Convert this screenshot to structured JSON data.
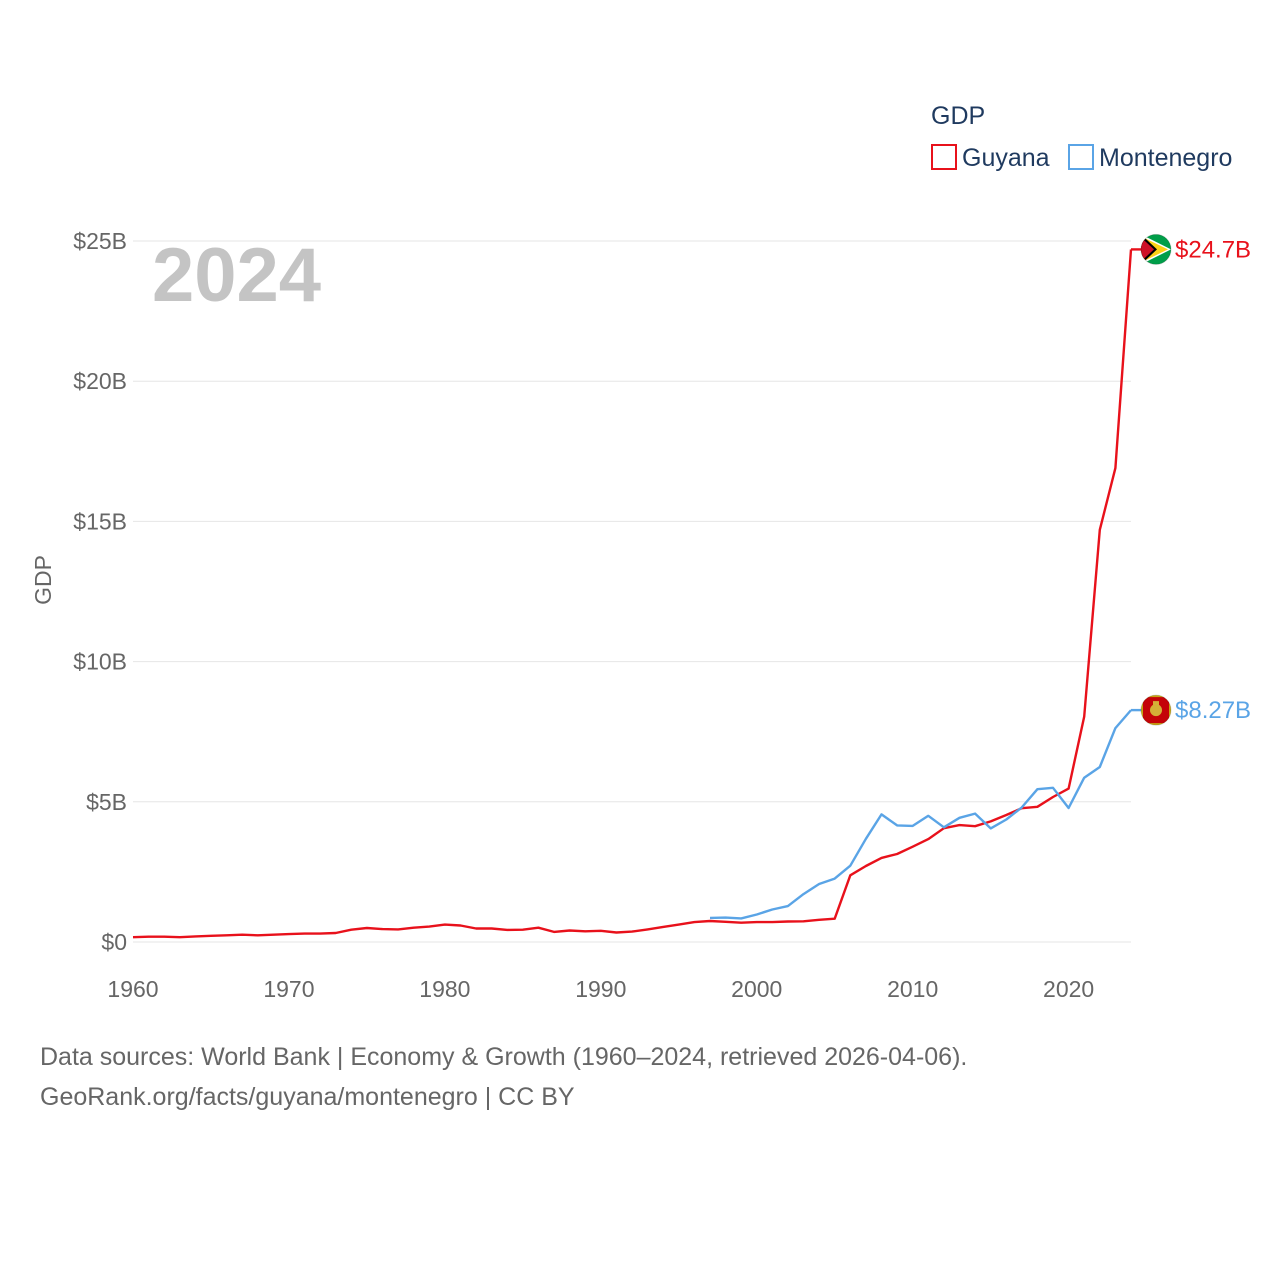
{
  "chart_data": {
    "type": "line",
    "title": "",
    "year_overlay": "2024",
    "xlabel": "",
    "ylabel": "GDP",
    "legend_title": "GDP",
    "legend_position": "top-right",
    "xlim": [
      1960,
      2024
    ],
    "ylim": [
      0,
      25
    ],
    "x_ticks": [
      1960,
      1970,
      1980,
      1990,
      2000,
      2010,
      2020
    ],
    "y_ticks": [
      {
        "value": 0,
        "label": "$0"
      },
      {
        "value": 5,
        "label": "$5B"
      },
      {
        "value": 10,
        "label": "$10B"
      },
      {
        "value": 15,
        "label": "$15B"
      },
      {
        "value": 20,
        "label": "$20B"
      },
      {
        "value": 25,
        "label": "$25B"
      }
    ],
    "grid": true,
    "units": "billions USD",
    "series": [
      {
        "name": "Guyana",
        "color": "#e8111b",
        "end_label": "$24.7B",
        "end_icon": "guyana-flag-icon",
        "x": [
          1960,
          1961,
          1962,
          1963,
          1964,
          1965,
          1966,
          1967,
          1968,
          1969,
          1970,
          1971,
          1972,
          1973,
          1974,
          1975,
          1976,
          1977,
          1978,
          1979,
          1980,
          1981,
          1982,
          1983,
          1984,
          1985,
          1986,
          1987,
          1988,
          1989,
          1990,
          1991,
          1992,
          1993,
          1994,
          1995,
          1996,
          1997,
          1998,
          1999,
          2000,
          2001,
          2002,
          2003,
          2004,
          2005,
          2006,
          2007,
          2008,
          2009,
          2010,
          2011,
          2012,
          2013,
          2014,
          2015,
          2016,
          2017,
          2018,
          2019,
          2020,
          2021,
          2022,
          2023,
          2024
        ],
        "values": [
          0.17,
          0.19,
          0.19,
          0.17,
          0.2,
          0.22,
          0.24,
          0.26,
          0.24,
          0.26,
          0.28,
          0.3,
          0.3,
          0.32,
          0.44,
          0.5,
          0.46,
          0.45,
          0.51,
          0.55,
          0.62,
          0.59,
          0.48,
          0.48,
          0.43,
          0.44,
          0.51,
          0.36,
          0.41,
          0.38,
          0.4,
          0.34,
          0.37,
          0.45,
          0.54,
          0.62,
          0.71,
          0.75,
          0.72,
          0.69,
          0.71,
          0.71,
          0.73,
          0.74,
          0.79,
          0.83,
          2.38,
          2.71,
          3.0,
          3.14,
          3.4,
          3.67,
          4.06,
          4.17,
          4.13,
          4.3,
          4.53,
          4.77,
          4.82,
          5.17,
          5.47,
          8.04,
          14.7,
          16.9,
          24.7
        ]
      },
      {
        "name": "Montenegro",
        "color": "#5aa4e6",
        "end_label": "$8.27B",
        "end_icon": "montenegro-flag-icon",
        "x": [
          1997,
          1998,
          1999,
          2000,
          2001,
          2002,
          2003,
          2004,
          2005,
          2006,
          2007,
          2008,
          2009,
          2010,
          2011,
          2012,
          2013,
          2014,
          2015,
          2016,
          2017,
          2018,
          2019,
          2020,
          2021,
          2022,
          2023,
          2024
        ],
        "values": [
          0.86,
          0.87,
          0.84,
          0.98,
          1.16,
          1.28,
          1.71,
          2.07,
          2.26,
          2.72,
          3.68,
          4.55,
          4.16,
          4.14,
          4.5,
          4.09,
          4.43,
          4.58,
          4.05,
          4.37,
          4.8,
          5.45,
          5.5,
          4.78,
          5.86,
          6.24,
          7.63,
          8.27
        ]
      }
    ]
  },
  "footer": {
    "line1": "Data sources: World Bank | Economy & Growth (1960–2024, retrieved 2026-04-06).",
    "line2": "GeoRank.org/facts/guyana/montenegro | CC BY"
  }
}
